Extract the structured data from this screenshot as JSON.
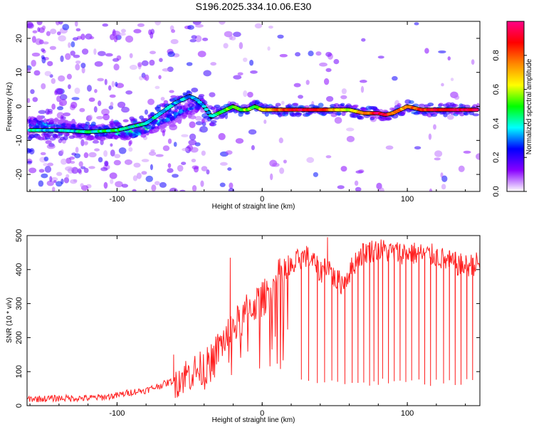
{
  "title": "S196.2025.334.10.06.E30",
  "colors": {
    "line": "#ff2020",
    "axis": "#000000"
  },
  "chart_data": [
    {
      "type": "heatmap",
      "name": "spectrogram",
      "xlabel": "Height of straight line (km)",
      "ylabel": "Frequency (Hz)",
      "xlim": [
        -162,
        150
      ],
      "ylim": [
        -25,
        25
      ],
      "xticks": [
        -100,
        0,
        100
      ],
      "yticks": [
        -20,
        -10,
        0,
        10,
        20
      ],
      "xtick_labels": [
        "-100",
        "0",
        "100"
      ],
      "ytick_labels": [
        "-20",
        "-10",
        "0",
        "10",
        "20"
      ],
      "colorbar": {
        "label": "Normalized spectral amplitude",
        "range": [
          0,
          1
        ],
        "ticks": [
          0,
          0.2,
          0.4,
          0.6,
          0.8
        ],
        "tick_labels": [
          "0.0",
          "0.2",
          "0.4",
          "0.6",
          "0.8"
        ],
        "colormap": [
          "#ffffff",
          "#8800ff",
          "#0000ff",
          "#00ffff",
          "#00ff00",
          "#ffff00",
          "#ff8800",
          "#ff0000",
          "#ff0088"
        ]
      },
      "ridge": {
        "x": [
          -160,
          -140,
          -120,
          -100,
          -90,
          -80,
          -70,
          -60,
          -50,
          -45,
          -40,
          -35,
          -30,
          -25,
          -20,
          -15,
          -10,
          -5,
          0,
          10,
          20,
          30,
          40,
          50,
          60,
          70,
          80,
          85,
          90,
          100,
          110,
          120,
          130,
          140,
          148
        ],
        "freq": [
          -7,
          -7,
          -7.5,
          -7,
          -6,
          -5,
          -2,
          1,
          3,
          2,
          0,
          -3,
          -2,
          -1,
          0,
          -1,
          -1,
          0,
          -1,
          -1,
          -1,
          -1,
          -1,
          -1,
          -1,
          -2,
          -2,
          -2.5,
          -2,
          0,
          -1,
          -1,
          -1,
          -1,
          -1
        ],
        "amp": [
          0.4,
          0.35,
          0.4,
          0.45,
          0.4,
          0.4,
          0.35,
          0.35,
          0.35,
          0.3,
          0.3,
          0.4,
          0.45,
          0.5,
          0.55,
          0.5,
          0.55,
          0.5,
          0.6,
          0.75,
          0.9,
          0.95,
          0.9,
          0.7,
          0.6,
          0.7,
          0.95,
          0.9,
          0.8,
          0.7,
          0.85,
          0.9,
          0.9,
          0.95,
          0.9
        ]
      },
      "secondary_branch": {
        "x": [
          -160,
          -140,
          -120,
          -100,
          -90,
          -80,
          -70,
          -60,
          -50,
          -45,
          -40
        ],
        "freq": [
          -5,
          -6,
          -7.5,
          -7.5,
          -7.5,
          -6.5,
          -4.5,
          -2.5,
          -1,
          0,
          1
        ],
        "amp": [
          0.35,
          0.3,
          0.35,
          0.4,
          0.45,
          0.4,
          0.35,
          0.35,
          0.3,
          0.3,
          0.3
        ]
      }
    },
    {
      "type": "line",
      "name": "snr",
      "xlabel": "Height of straight line (km)",
      "ylabel": "SNR (10 * v/v)",
      "xlim": [
        -162,
        150
      ],
      "ylim": [
        0,
        500
      ],
      "xticks": [
        -100,
        0,
        100
      ],
      "yticks": [
        0,
        100,
        200,
        300,
        400,
        500
      ],
      "xtick_labels": [
        "-100",
        "0",
        "100"
      ],
      "ytick_labels": [
        "0",
        "100",
        "200",
        "300",
        "400",
        "500"
      ],
      "x": [
        -162,
        -150,
        -140,
        -130,
        -120,
        -110,
        -100,
        -90,
        -80,
        -70,
        -60,
        -50,
        -40,
        -35,
        -30,
        -25,
        -20,
        -15,
        -10,
        -5,
        0,
        5,
        10,
        15,
        20,
        25,
        30,
        35,
        40,
        45,
        50,
        55,
        60,
        65,
        70,
        80,
        90,
        100,
        110,
        120,
        130,
        140,
        150
      ],
      "values": [
        20,
        20,
        22,
        22,
        22,
        25,
        30,
        40,
        45,
        60,
        75,
        95,
        110,
        130,
        170,
        200,
        230,
        250,
        280,
        300,
        310,
        340,
        370,
        395,
        400,
        430,
        440,
        425,
        390,
        420,
        370,
        360,
        390,
        430,
        450,
        460,
        450,
        450,
        445,
        440,
        420,
        410,
        420
      ],
      "spikes": [
        {
          "x": -61,
          "y": 150
        },
        {
          "x": -22,
          "y": 435
        },
        {
          "x": 45,
          "y": 495
        },
        {
          "x": 150,
          "y": 480
        }
      ],
      "dropouts_x": [
        27,
        32,
        38,
        43,
        48,
        52,
        57,
        62,
        66,
        70,
        74,
        77,
        80,
        83,
        87,
        91,
        95,
        99,
        103,
        108,
        112,
        116,
        120,
        125,
        129,
        133,
        137,
        141,
        145
      ],
      "dropout_floor": 55
    }
  ]
}
